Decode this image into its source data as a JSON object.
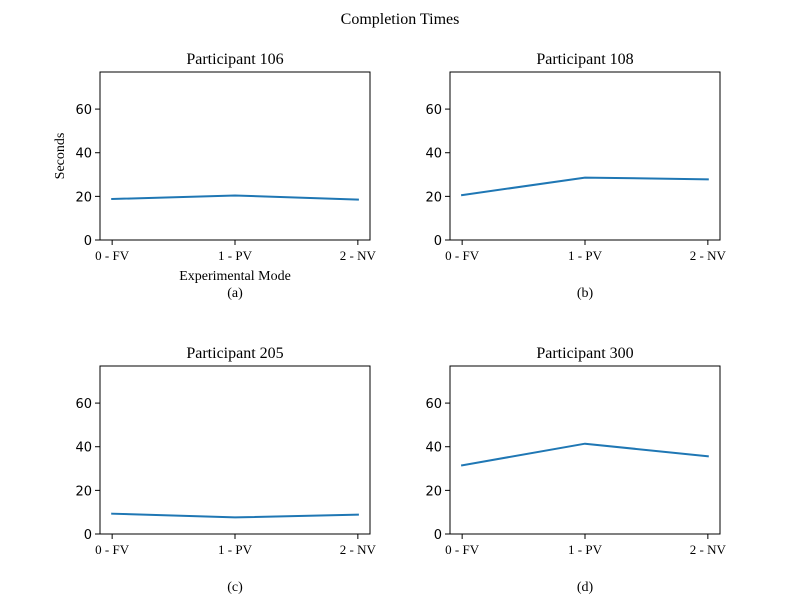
{
  "figure": {
    "title": "Completion Times",
    "accent_color": "#1f77b4"
  },
  "chart_data": [
    {
      "type": "line",
      "title": "Participant 106",
      "categories": [
        "0 - FV",
        "1 - PV",
        "2 - NV"
      ],
      "values": [
        18.8,
        20.4,
        18.5
      ],
      "xlabel": "Experimental Mode",
      "ylabel": "Seconds",
      "caption": "(a)",
      "ylim": [
        0,
        77
      ],
      "yticks": [
        0,
        20,
        40,
        60
      ],
      "grid": false
    },
    {
      "type": "line",
      "title": "Participant 108",
      "categories": [
        "0 - FV",
        "1 - PV",
        "2 - NV"
      ],
      "values": [
        20.6,
        28.6,
        27.8
      ],
      "xlabel": "",
      "ylabel": "",
      "caption": "(b)",
      "ylim": [
        0,
        77
      ],
      "yticks": [
        0,
        20,
        40,
        60
      ],
      "grid": false
    },
    {
      "type": "line",
      "title": "Participant 205",
      "categories": [
        "0 - FV",
        "1 - PV",
        "2 - NV"
      ],
      "values": [
        9.3,
        7.6,
        8.9
      ],
      "xlabel": "",
      "ylabel": "",
      "caption": "(c)",
      "ylim": [
        0,
        77
      ],
      "yticks": [
        0,
        20,
        40,
        60
      ],
      "grid": false
    },
    {
      "type": "line",
      "title": "Participant 300",
      "categories": [
        "0 - FV",
        "1 - PV",
        "2 - NV"
      ],
      "values": [
        31.5,
        41.4,
        35.6
      ],
      "xlabel": "",
      "ylabel": "",
      "caption": "(d)",
      "ylim": [
        0,
        77
      ],
      "yticks": [
        0,
        20,
        40,
        60
      ],
      "grid": false
    }
  ]
}
